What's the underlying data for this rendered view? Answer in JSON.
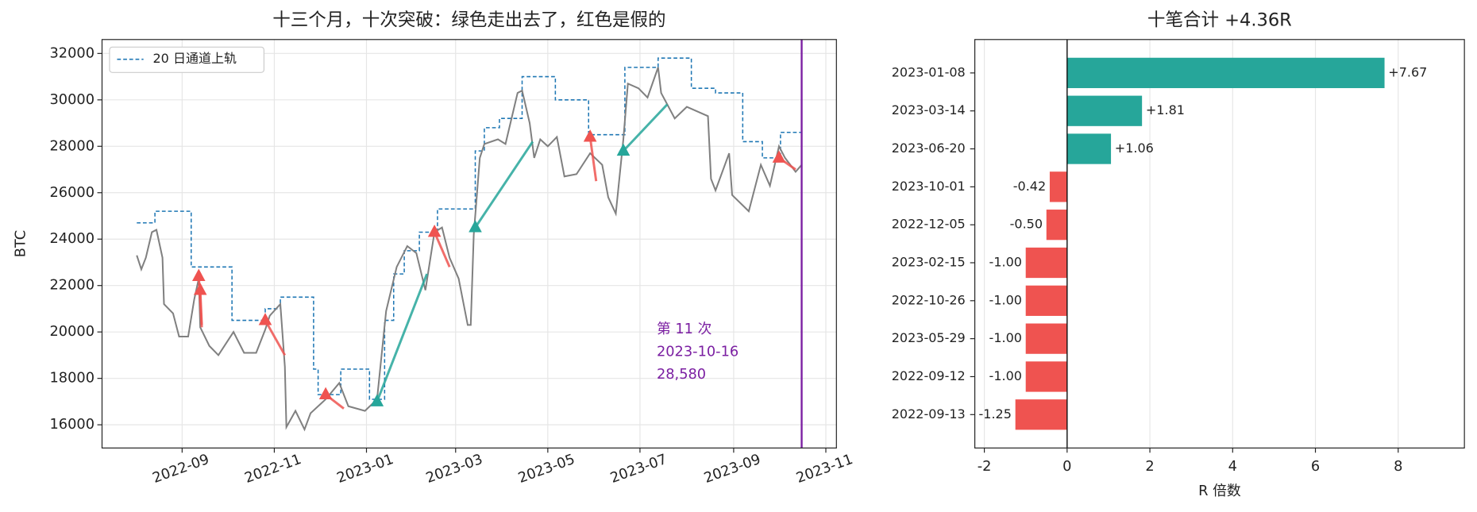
{
  "chart_data": [
    {
      "type": "line",
      "title": "十三个月，十次突破：绿色走出去了，红色是假的",
      "ylabel": "BTC",
      "xlim": [
        "2022-07-10",
        "2023-11-08"
      ],
      "xticks": [
        {
          "value": "2022-09-01",
          "label": "2022-09"
        },
        {
          "value": "2022-11-01",
          "label": "2022-11"
        },
        {
          "value": "2023-01-01",
          "label": "2023-01"
        },
        {
          "value": "2023-03-01",
          "label": "2023-03"
        },
        {
          "value": "2023-05-01",
          "label": "2023-05"
        },
        {
          "value": "2023-07-01",
          "label": "2023-07"
        },
        {
          "value": "2023-09-01",
          "label": "2023-09"
        },
        {
          "value": "2023-11-01",
          "label": "2023-11"
        }
      ],
      "ylim": [
        15000,
        32600
      ],
      "yticks": [
        16000,
        18000,
        20000,
        22000,
        24000,
        26000,
        28000,
        30000,
        32000
      ],
      "grid": true,
      "legend": "upper left",
      "series": [
        {
          "name": "20 日通道上轨",
          "color": "#1f77b4",
          "style": "dashed",
          "step": true,
          "x": [
            "2022-08-02",
            "2022-08-14",
            "2022-09-07",
            "2022-10-04",
            "2022-10-26",
            "2022-11-05",
            "2022-11-27",
            "2022-11-30",
            "2022-12-15",
            "2023-01-03",
            "2023-01-13",
            "2023-01-19",
            "2023-01-26",
            "2023-02-05",
            "2023-02-17",
            "2023-03-14",
            "2023-03-20",
            "2023-03-30",
            "2023-04-14",
            "2023-05-06",
            "2023-05-28",
            "2023-06-21",
            "2023-07-13",
            "2023-08-04",
            "2023-08-20",
            "2023-09-07",
            "2023-09-20",
            "2023-10-02",
            "2023-10-16"
          ],
          "values": [
            24700,
            25200,
            22800,
            20500,
            21000,
            21500,
            18400,
            17300,
            18400,
            17100,
            20500,
            22500,
            23500,
            24300,
            25300,
            27800,
            28800,
            29200,
            31000,
            30000,
            28500,
            31400,
            31800,
            30500,
            30300,
            28200,
            27500,
            28600,
            28600
          ]
        },
        {
          "color": "#808080",
          "style": "solid",
          "x": [
            "2022-08-02",
            "2022-08-05",
            "2022-08-08",
            "2022-08-12",
            "2022-08-15",
            "2022-08-19",
            "2022-08-20",
            "2022-08-26",
            "2022-08-30",
            "2022-09-05",
            "2022-09-09",
            "2022-09-12",
            "2022-09-13",
            "2022-09-19",
            "2022-09-25",
            "2022-10-05",
            "2022-10-12",
            "2022-10-20",
            "2022-10-26",
            "2022-10-29",
            "2022-11-05",
            "2022-11-08",
            "2022-11-09",
            "2022-11-15",
            "2022-11-21",
            "2022-11-25",
            "2022-12-05",
            "2022-12-14",
            "2022-12-20",
            "2022-12-31",
            "2023-01-08",
            "2023-01-14",
            "2023-01-21",
            "2023-01-28",
            "2023-02-03",
            "2023-02-09",
            "2023-02-15",
            "2023-02-20",
            "2023-02-25",
            "2023-03-03",
            "2023-03-09",
            "2023-03-11",
            "2023-03-13",
            "2023-03-17",
            "2023-03-20",
            "2023-03-29",
            "2023-04-03",
            "2023-04-11",
            "2023-04-14",
            "2023-04-19",
            "2023-04-22",
            "2023-04-26",
            "2023-05-01",
            "2023-05-07",
            "2023-05-12",
            "2023-05-20",
            "2023-05-29",
            "2023-06-06",
            "2023-06-10",
            "2023-06-15",
            "2023-06-20",
            "2023-06-23",
            "2023-06-30",
            "2023-07-06",
            "2023-07-13",
            "2023-07-15",
            "2023-07-24",
            "2023-08-01",
            "2023-08-15",
            "2023-08-17",
            "2023-08-20",
            "2023-08-29",
            "2023-08-31",
            "2023-09-11",
            "2023-09-19",
            "2023-09-25",
            "2023-10-01",
            "2023-10-05",
            "2023-10-12",
            "2023-10-16"
          ],
          "values": [
            23300,
            22700,
            23200,
            24300,
            24400,
            23200,
            21200,
            20800,
            19800,
            19800,
            21400,
            22300,
            20200,
            19400,
            19000,
            20000,
            19100,
            19100,
            20100,
            20700,
            21200,
            18500,
            15900,
            16600,
            15800,
            16500,
            17100,
            17800,
            16800,
            16600,
            17100,
            20900,
            22800,
            23700,
            23400,
            21800,
            24300,
            24500,
            23200,
            22300,
            20300,
            20300,
            24200,
            27500,
            28100,
            28300,
            28100,
            30300,
            30400,
            29000,
            27500,
            28300,
            28000,
            28400,
            26700,
            26800,
            27700,
            27200,
            25800,
            25100,
            28300,
            30700,
            30500,
            30100,
            31400,
            30300,
            29200,
            29700,
            29300,
            26600,
            26100,
            27700,
            25900,
            25200,
            27200,
            26300,
            28000,
            27500,
            26900,
            27200
          ]
        }
      ],
      "trades": [
        {
          "x": [
            "2022-09-12",
            "2022-09-14"
          ],
          "values": [
            22400,
            20200
          ],
          "color": "#ef5350"
        },
        {
          "x": [
            "2022-09-13",
            "2022-09-14"
          ],
          "values": [
            21800,
            20300
          ],
          "color": "#ef5350"
        },
        {
          "x": [
            "2022-10-26",
            "2022-11-08"
          ],
          "values": [
            20500,
            19000
          ],
          "color": "#ef5350"
        },
        {
          "x": [
            "2022-12-05",
            "2022-12-17"
          ],
          "values": [
            17300,
            16700
          ],
          "color": "#ef5350"
        },
        {
          "x": [
            "2023-01-08",
            "2023-02-10"
          ],
          "values": [
            17000,
            22500
          ],
          "color": "#26a69a"
        },
        {
          "x": [
            "2023-02-15",
            "2023-02-25"
          ],
          "values": [
            24300,
            22800
          ],
          "color": "#ef5350"
        },
        {
          "x": [
            "2023-03-14",
            "2023-04-21"
          ],
          "values": [
            24500,
            28200
          ],
          "color": "#26a69a"
        },
        {
          "x": [
            "2023-05-29",
            "2023-06-02"
          ],
          "values": [
            28400,
            26500
          ],
          "color": "#ef5350"
        },
        {
          "x": [
            "2023-06-20",
            "2023-07-19"
          ],
          "values": [
            27800,
            29800
          ],
          "color": "#26a69a"
        },
        {
          "x": [
            "2023-10-01",
            "2023-10-12"
          ],
          "values": [
            27500,
            27000
          ],
          "color": "#ef5350"
        }
      ],
      "marker": {
        "x": "2023-10-16",
        "color": "#7b1fa2",
        "label": [
          "第 11 次",
          "2023-10-16",
          "28,580"
        ]
      }
    },
    {
      "type": "barh",
      "title": "十笔合计 +4.36R",
      "xlabel": "R 倍数",
      "categories": [
        "2023-01-08",
        "2023-03-14",
        "2023-06-20",
        "2023-10-01",
        "2022-12-05",
        "2023-02-15",
        "2022-10-26",
        "2023-05-29",
        "2022-09-12",
        "2022-09-13"
      ],
      "values": [
        7.67,
        1.81,
        1.06,
        -0.42,
        -0.5,
        -1.0,
        -1.0,
        -1.0,
        -1.0,
        -1.25
      ],
      "value_labels": [
        "+7.67",
        "+1.81",
        "+1.06",
        "-0.42",
        "-0.50",
        "-1.00",
        "-1.00",
        "-1.00",
        "-1.00",
        "-1.25"
      ],
      "colors": {
        "positive": "#26a69a",
        "negative": "#ef5350"
      },
      "xlim": [
        -2.23,
        9.6
      ],
      "xticks": [
        -2,
        0,
        2,
        4,
        6,
        8
      ],
      "grid": true
    }
  ]
}
